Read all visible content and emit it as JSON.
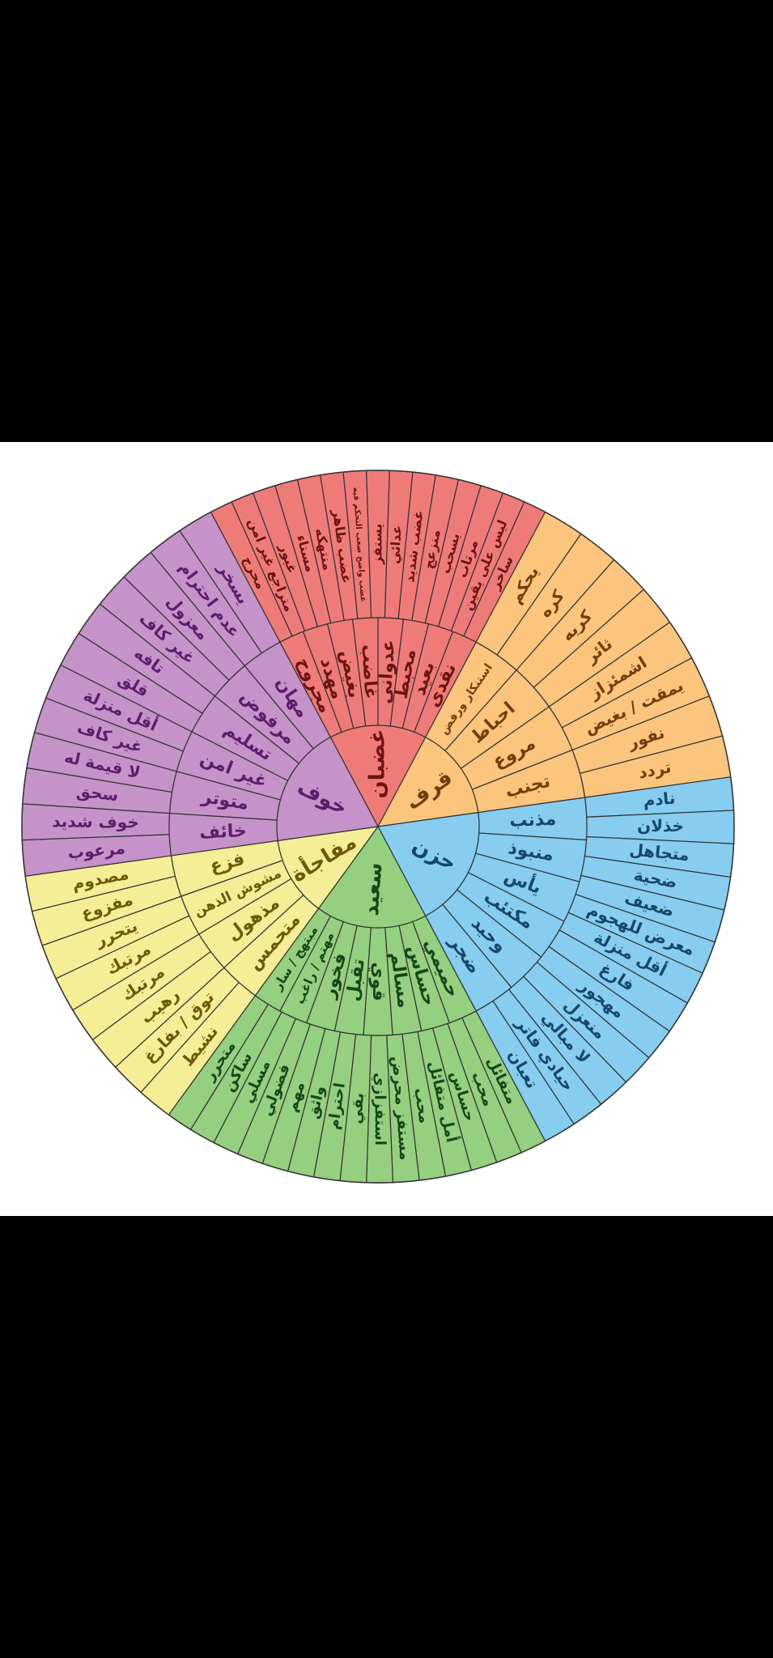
{
  "wheel": {
    "colors": {
      "anger": "#ef7b78",
      "disgust": "#fcc57d",
      "sad": "#86cdf0",
      "happy": "#95cf80",
      "surprise": "#f6ee96",
      "fear": "#c592c9",
      "stroke": "#333333"
    },
    "text_colors": {
      "anger": "#6b1412",
      "disgust": "#6e3e0a",
      "sad": "#16466a",
      "happy": "#16451a",
      "surprise": "#6a5a0a",
      "fear": "#5b1f6a"
    },
    "core": [
      {
        "key": "anger",
        "label": "غضبان",
        "start": -28,
        "end": 28
      },
      {
        "key": "disgust",
        "label": "قرف",
        "start": 28,
        "end": 82
      },
      {
        "key": "sad",
        "label": "حزن",
        "start": 82,
        "end": 152
      },
      {
        "key": "happy",
        "label": "سعيد",
        "start": 152,
        "end": 216
      },
      {
        "key": "surprise",
        "label": "مفاجأة",
        "start": 216,
        "end": 262
      },
      {
        "key": "fear",
        "label": "خوف",
        "start": 262,
        "end": 332
      }
    ],
    "middle": [
      {
        "key": "anger",
        "items": [
          "مجروح",
          "مهدد",
          "بغيض",
          "غاضب",
          "عدواني",
          "محبط",
          "بعيد",
          "نقدي"
        ]
      },
      {
        "key": "disgust",
        "items": [
          "استنكار ورفض",
          "احباط",
          "مروع",
          "تجنب"
        ]
      },
      {
        "key": "sad",
        "items": [
          "مذنب",
          "منبوذ",
          "يأس",
          "مكتئب",
          "وحيد",
          "ضجر"
        ]
      },
      {
        "key": "happy",
        "items": [
          "حميمي",
          "حساس",
          "مسالم",
          "قوي",
          "تقبل",
          "فخور",
          "مهتم / راغب",
          "مبتهج / سار"
        ]
      },
      {
        "key": "surprise",
        "items": [
          "متحمس",
          "مذهول",
          "مشوش الذهن",
          "فزع"
        ]
      },
      {
        "key": "fear",
        "items": [
          "خائف",
          "متوتر",
          "غير امن",
          "تسليم",
          "مرفوض",
          "مهان"
        ]
      }
    ],
    "outer": [
      {
        "key": "anger",
        "items": [
          "محرج",
          "متراجع غير امن",
          "غيور",
          "مستاء",
          "منتهكه",
          "غضب ظاهر",
          "غضب واضح صعب التحكم فيه",
          "يستفز",
          "عدائي",
          "غضب شديد",
          "منزعج",
          "يسحب",
          "مرتاب",
          "ليس على يقين",
          "ساخر"
        ]
      },
      {
        "key": "disgust",
        "items": [
          "يحكم",
          "كره",
          "كريه",
          "ثائر",
          "اشمئزاز",
          "يمقت / بغيض",
          "نفور",
          "تردد"
        ]
      },
      {
        "key": "sad",
        "items": [
          "نادم",
          "خذلان",
          "متجاهل",
          "ضحية",
          "ضعيف",
          "معرض للهجوم",
          "أقل منزلة",
          "فارغ",
          "مهجور",
          "منعزل",
          "لا مبالي",
          "حيادي فاتر",
          "تعبان"
        ]
      },
      {
        "key": "happy",
        "items": [
          "متفائل",
          "محب",
          "حساس",
          "أمل متفائل",
          "محب",
          "مستفز محرض",
          "استفزازي",
          "بقي",
          "احترام",
          "واثق",
          "مهم",
          "فضولي",
          "مسلي",
          "ساكن",
          "متحرر"
        ]
      },
      {
        "key": "surprise",
        "items": [
          "نشيط",
          "توق / بفارغ",
          "رهيب",
          "مرتبك",
          "مرتبك",
          "يتحرر",
          "مفزوع",
          "مصدوم"
        ]
      },
      {
        "key": "fear",
        "items": [
          "مرعوب",
          "خوف شديد",
          "سحق",
          "لا قيمة له",
          "غير كاف",
          "أقل منزلة",
          "قلق",
          "تافه",
          "غير كاف",
          "معزول",
          "عدم احترام",
          "يسخر"
        ]
      }
    ]
  }
}
